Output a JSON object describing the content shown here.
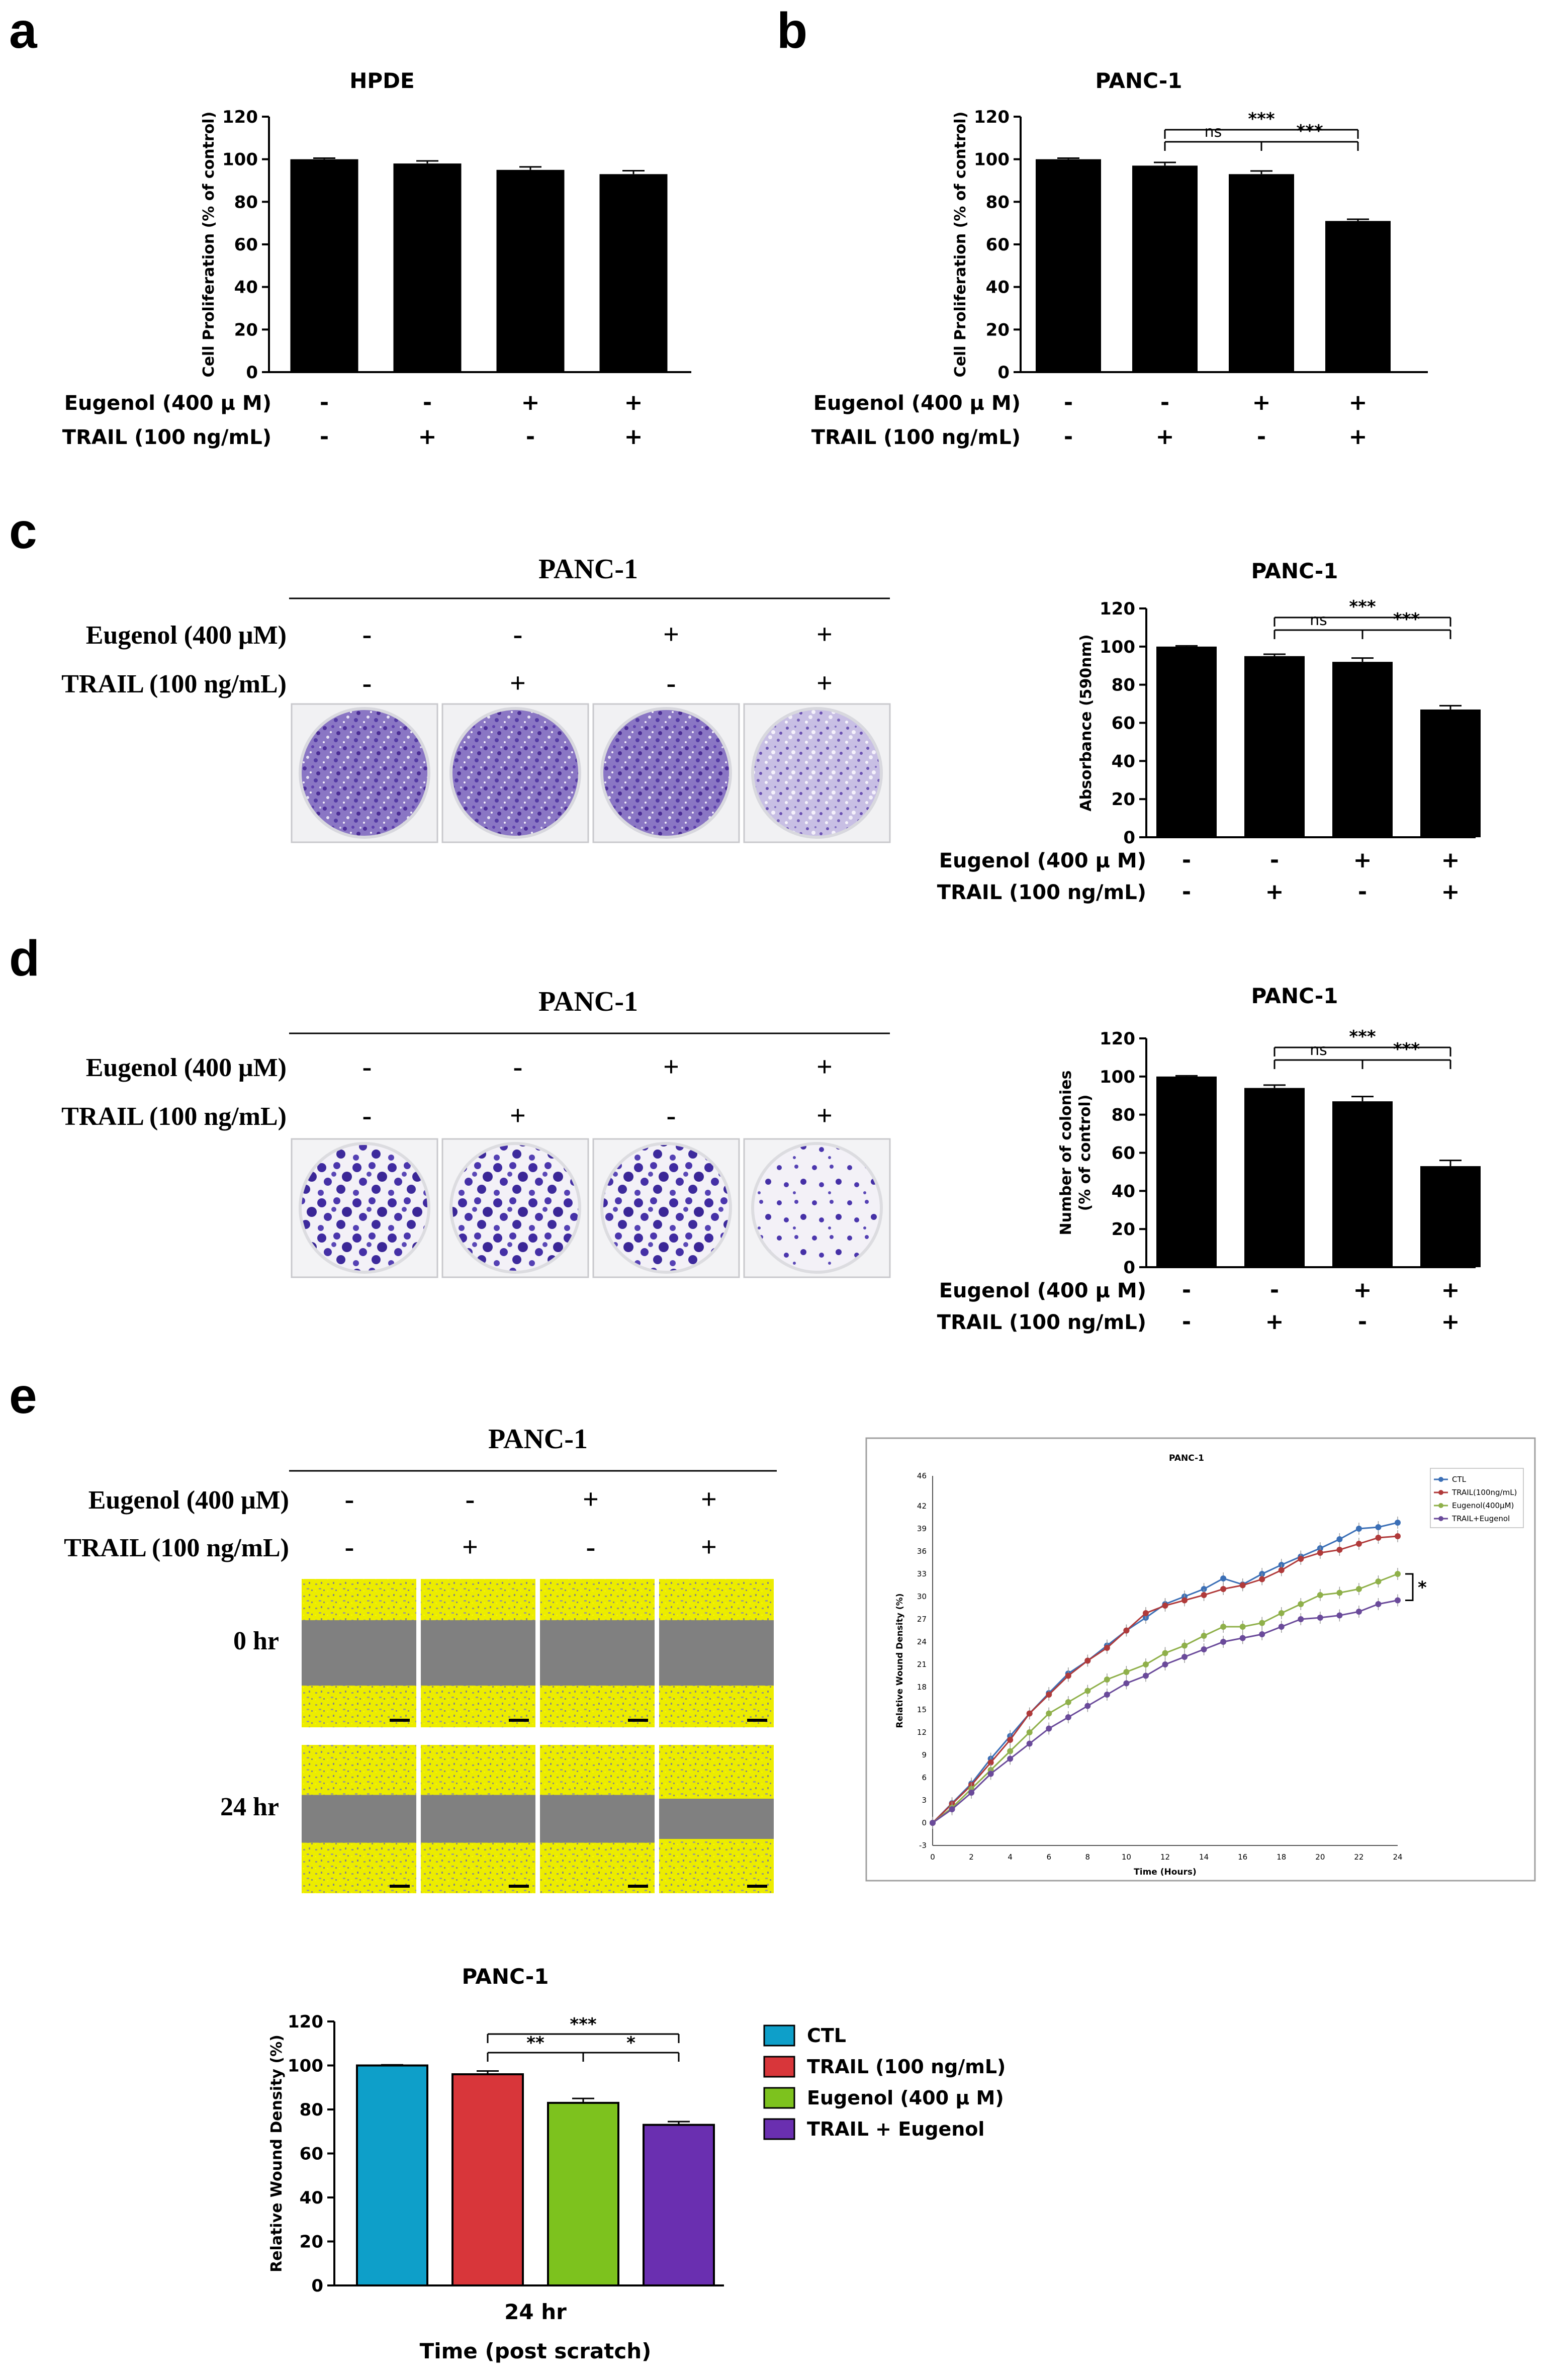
{
  "panels": {
    "a": {
      "letter": "a",
      "chart_data": {
        "type": "bar",
        "title": "HPDE",
        "ylabel": "Cell Proliferation (% of control)",
        "ylim": [
          0,
          120
        ],
        "yticks": [
          "0",
          "20",
          "40",
          "60",
          "80",
          "100",
          "120"
        ],
        "values": [
          100,
          98,
          95,
          93
        ],
        "errors": [
          0.5,
          1.2,
          1.4,
          1.6
        ],
        "categories": [
          "1",
          "2",
          "3",
          "4"
        ],
        "rows": [
          {
            "label": "Eugenol (400 μ M)",
            "signs": [
              "-",
              "-",
              "+",
              "+"
            ]
          },
          {
            "label": "TRAIL (100 ng/mL)",
            "signs": [
              "-",
              "+",
              "-",
              "+"
            ]
          }
        ]
      }
    },
    "b": {
      "letter": "b",
      "chart_data": {
        "type": "bar",
        "title": "PANC-1",
        "ylabel": "Cell Proliferation (% of control)",
        "ylim": [
          0,
          120
        ],
        "yticks": [
          "0",
          "20",
          "40",
          "60",
          "80",
          "100",
          "120"
        ],
        "values": [
          100,
          97,
          93,
          71
        ],
        "errors": [
          0.5,
          1.5,
          1.5,
          0.8
        ],
        "categories": [
          "1",
          "2",
          "3",
          "4"
        ],
        "sig": [
          {
            "from": 1,
            "to": 3,
            "label": "***",
            "level": 2
          },
          {
            "from": 1,
            "to": 2,
            "label": "ns",
            "level": 1
          },
          {
            "from": 2,
            "to": 3,
            "label": "***",
            "level": 1
          }
        ],
        "rows": [
          {
            "label": "Eugenol (400 μ M)",
            "signs": [
              "-",
              "-",
              "+",
              "+"
            ]
          },
          {
            "label": "TRAIL (100 ng/mL)",
            "signs": [
              "-",
              "+",
              "-",
              "+"
            ]
          }
        ]
      }
    },
    "c": {
      "letter": "c",
      "photo_title": "PANC-1",
      "photo_rows": [
        {
          "label": "Eugenol (400 μM)",
          "signs": [
            "-",
            "-",
            "+",
            "+"
          ]
        },
        {
          "label": "TRAIL (100 ng/mL)",
          "signs": [
            "-",
            "+",
            "-",
            "+"
          ]
        }
      ],
      "chart_data": {
        "type": "bar",
        "title": "PANC-1",
        "ylabel": "Absorbance (590nm)",
        "ylim": [
          0,
          120
        ],
        "yticks": [
          "0",
          "20",
          "40",
          "60",
          "80",
          "100",
          "120"
        ],
        "values": [
          100,
          95,
          92,
          67
        ],
        "errors": [
          0.4,
          1.0,
          2.0,
          2.0
        ],
        "categories": [
          "1",
          "2",
          "3",
          "4"
        ],
        "sig": [
          {
            "from": 1,
            "to": 3,
            "label": "***",
            "level": 2
          },
          {
            "from": 1,
            "to": 2,
            "label": "ns",
            "level": 1
          },
          {
            "from": 2,
            "to": 3,
            "label": "***",
            "level": 1
          }
        ],
        "rows": [
          {
            "label": "Eugenol (400 μ M)",
            "signs": [
              "-",
              "-",
              "+",
              "+"
            ]
          },
          {
            "label": "TRAIL (100 ng/mL)",
            "signs": [
              "-",
              "+",
              "-",
              "+"
            ]
          }
        ]
      }
    },
    "d": {
      "letter": "d",
      "photo_title": "PANC-1",
      "photo_rows": [
        {
          "label": "Eugenol (400 μM)",
          "signs": [
            "-",
            "-",
            "+",
            "+"
          ]
        },
        {
          "label": "TRAIL (100 ng/mL)",
          "signs": [
            "-",
            "+",
            "-",
            "+"
          ]
        }
      ],
      "chart_data": {
        "type": "bar",
        "title": "PANC-1",
        "ylabel": "Number of colonies",
        "ylabel2": "(% of control)",
        "ylim": [
          0,
          120
        ],
        "yticks": [
          "0",
          "20",
          "40",
          "60",
          "80",
          "100",
          "120"
        ],
        "values": [
          100,
          94,
          87,
          53
        ],
        "errors": [
          0.4,
          1.5,
          2.5,
          3.0
        ],
        "categories": [
          "1",
          "2",
          "3",
          "4"
        ],
        "sig": [
          {
            "from": 1,
            "to": 3,
            "label": "***",
            "level": 2
          },
          {
            "from": 1,
            "to": 2,
            "label": "ns",
            "level": 1
          },
          {
            "from": 2,
            "to": 3,
            "label": "***",
            "level": 1
          }
        ],
        "rows": [
          {
            "label": "Eugenol (400 μ M)",
            "signs": [
              "-",
              "-",
              "+",
              "+"
            ]
          },
          {
            "label": "TRAIL (100 ng/mL)",
            "signs": [
              "-",
              "+",
              "-",
              "+"
            ]
          }
        ]
      }
    },
    "e": {
      "letter": "e",
      "photo_title": "PANC-1",
      "photo_rows": [
        {
          "label": "Eugenol (400 μM)",
          "signs": [
            "-",
            "-",
            "+",
            "+"
          ]
        },
        {
          "label": "TRAIL (100 ng/mL)",
          "signs": [
            "-",
            "+",
            "-",
            "+"
          ]
        }
      ],
      "time_labels": [
        "0 hr",
        "24 hr"
      ],
      "line_chart": {
        "type": "line",
        "title": "PANC-1",
        "xlabel": "Time (Hours)",
        "ylabel": "Relative Wound Density (%)",
        "xlim": [
          0,
          24
        ],
        "ylim": [
          -3,
          46
        ],
        "xticks": [
          "0",
          "2",
          "4",
          "6",
          "8",
          "10",
          "12",
          "14",
          "16",
          "18",
          "20",
          "22",
          "24"
        ],
        "yticks": [
          "-3",
          "0",
          "3",
          "6",
          "9",
          "12",
          "15",
          "18",
          "21",
          "24",
          "27",
          "30",
          "33",
          "36",
          "39",
          "42",
          "46"
        ],
        "x": [
          0,
          1,
          2,
          3,
          4,
          5,
          6,
          7,
          8,
          9,
          10,
          11,
          12,
          13,
          14,
          15,
          16,
          17,
          18,
          19,
          20,
          21,
          22,
          23,
          24
        ],
        "series": [
          {
            "name": "CTL",
            "color": "#3b6fb6",
            "values": [
              0,
              2.6,
              5.2,
              8.5,
              11.5,
              14.5,
              17.2,
              19.8,
              21.5,
              23.5,
              25.5,
              27.2,
              29,
              30,
              31,
              32.4,
              31.6,
              33,
              34.2,
              35.3,
              36.4,
              37.6,
              39,
              39.2,
              39.8
            ]
          },
          {
            "name": "TRAIL(100ng/mL)",
            "color": "#b03a3a",
            "values": [
              0,
              2.5,
              5,
              8,
              11,
              14.5,
              17,
              19.5,
              21.5,
              23.2,
              25.5,
              27.8,
              28.8,
              29.5,
              30.2,
              31,
              31.5,
              32.3,
              33.5,
              35,
              35.8,
              36.2,
              37,
              37.8,
              38
            ]
          },
          {
            "name": "Eugenol(400μM)",
            "color": "#8fb04a",
            "values": [
              0,
              2,
              4.5,
              7,
              9.5,
              12,
              14.5,
              16,
              17.5,
              19,
              20,
              21,
              22.5,
              23.5,
              24.8,
              26,
              26,
              26.5,
              27.8,
              29,
              30.2,
              30.5,
              31,
              32,
              33
            ]
          },
          {
            "name": "TRAIL+Eugenol",
            "color": "#6a4a9a",
            "values": [
              0,
              1.8,
              4,
              6.5,
              8.5,
              10.5,
              12.5,
              14,
              15.5,
              17,
              18.5,
              19.5,
              21,
              22,
              23,
              24,
              24.5,
              25,
              26,
              27,
              27.2,
              27.5,
              28,
              29,
              29.5
            ]
          }
        ],
        "sig_label": "*"
      },
      "bar_chart": {
        "type": "bar",
        "title": "PANC-1",
        "xlabel": "Time (post scratch)",
        "ylabel": "Relative Wound Density (%)",
        "category": "24 hr",
        "ylim": [
          0,
          120
        ],
        "yticks": [
          "0",
          "20",
          "40",
          "60",
          "80",
          "100",
          "120"
        ],
        "series": [
          {
            "name": "CTL",
            "color": "#0e9fc9",
            "value": 100,
            "error": 0.3
          },
          {
            "name": "TRAIL (100 ng/mL)",
            "color": "#d8363a",
            "value": 96,
            "error": 1.5
          },
          {
            "name": "Eugenol (400 μ M)",
            "color": "#7dc21e",
            "value": 83,
            "error": 2.0
          },
          {
            "name": "TRAIL + Eugenol",
            "color": "#6a2fb0",
            "value": 73,
            "error": 1.5
          }
        ],
        "sig": [
          {
            "from": 1,
            "to": 3,
            "label": "***",
            "level": 2
          },
          {
            "from": 1,
            "to": 2,
            "label": "**",
            "level": 1
          },
          {
            "from": 2,
            "to": 3,
            "label": "*",
            "level": 1
          }
        ]
      }
    }
  }
}
